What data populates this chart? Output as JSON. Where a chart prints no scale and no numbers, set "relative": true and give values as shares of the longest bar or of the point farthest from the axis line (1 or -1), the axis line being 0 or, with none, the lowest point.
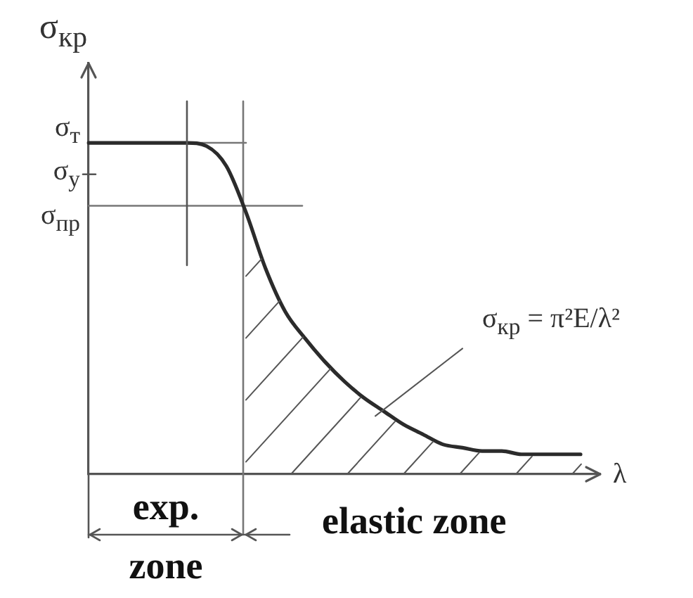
{
  "chart_data": {
    "type": "line",
    "xlabel": "λ",
    "ylabel": "σ$_{кр}$",
    "relative": true,
    "categories": [
      null,
      null,
      null,
      null,
      null,
      null,
      null,
      null,
      null,
      null,
      null,
      null,
      null,
      null,
      null,
      null,
      null,
      null,
      null,
      null,
      null,
      null,
      null,
      null,
      null,
      null,
      null
    ],
    "values": [
      1,
      1,
      1,
      1,
      1,
      1,
      0.99,
      0.93,
      0.79,
      0.62,
      0.49,
      0.41,
      0.34,
      0.28,
      0.23,
      0.19,
      0.15,
      0.12,
      0.09,
      0.08,
      0.07,
      0.07,
      0.06,
      0.06,
      0.06,
      0.06,
      null
    ],
    "color": "#2b2b2b",
    "ref_lines": [
      {
        "axis": "y",
        "value": 1,
        "label": "σ$_{т}$",
        "color": "#777777"
      },
      {
        "axis": "y",
        "value": 0.81,
        "label": "σ$_{пр}$",
        "color": "#777777"
      }
    ],
    "annotations": [
      "σ$_{у}$",
      "σ$_{кр}$ = π²E/λ²",
      "exp. zone",
      "elastic zone"
    ]
  }
}
